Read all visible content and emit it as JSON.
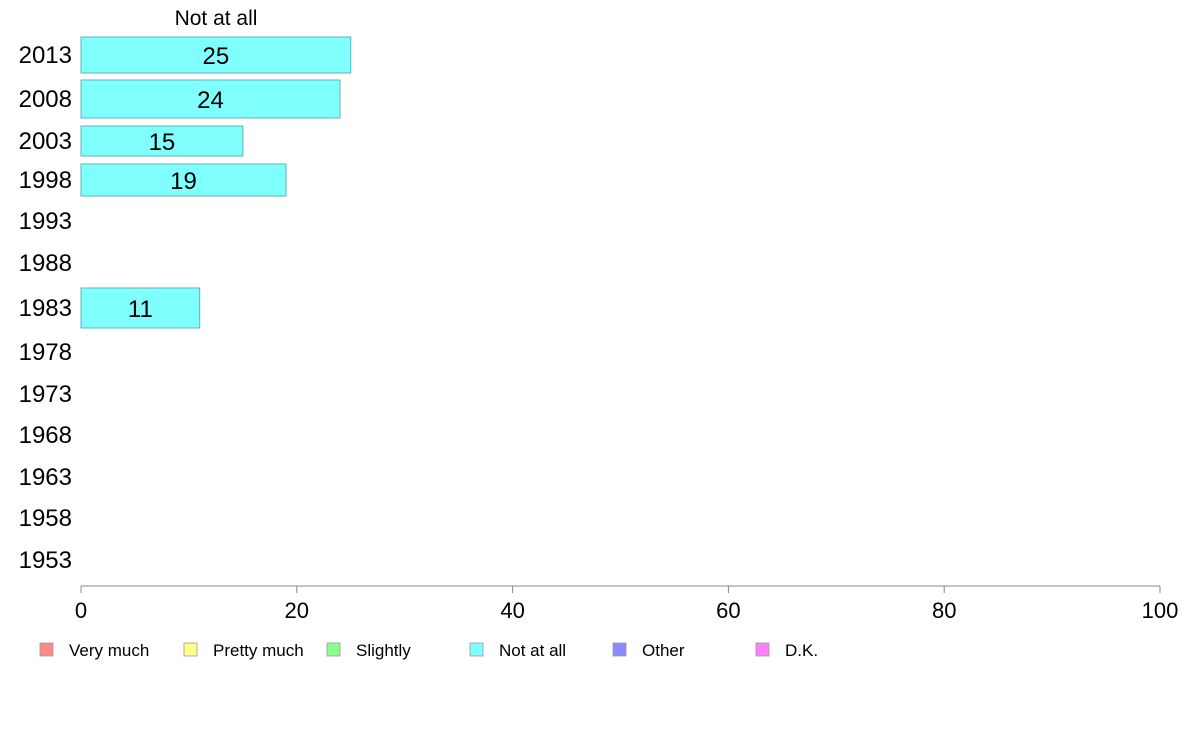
{
  "chart_data": {
    "type": "bar",
    "orientation": "horizontal",
    "column_header": "Not at all",
    "categories": [
      "2013",
      "2008",
      "2003",
      "1998",
      "1993",
      "1988",
      "1983",
      "1978",
      "1973",
      "1968",
      "1963",
      "1958",
      "1953"
    ],
    "series": [
      {
        "name": "Not at all",
        "color": "#80ffff",
        "values": [
          25,
          24,
          15,
          19,
          null,
          null,
          11,
          null,
          null,
          null,
          null,
          null,
          null
        ],
        "labels": [
          "25",
          "24",
          "15",
          "19",
          "",
          "",
          "11",
          "",
          "",
          "",
          "",
          "",
          ""
        ]
      }
    ],
    "xlim": [
      0,
      100
    ],
    "xticks": [
      "0",
      "20",
      "40",
      "60",
      "80",
      "100"
    ],
    "grid": false,
    "legend": {
      "position": "bottom",
      "items": [
        {
          "label": "Very much",
          "color": "#ff8a8a"
        },
        {
          "label": "Pretty much",
          "color": "#ffff8a"
        },
        {
          "label": "Slightly",
          "color": "#8aff8a"
        },
        {
          "label": "Not at all",
          "color": "#80ffff"
        },
        {
          "label": "Other",
          "color": "#8a8aff"
        },
        {
          "label": "D.K.",
          "color": "#ff80ff"
        }
      ]
    }
  }
}
